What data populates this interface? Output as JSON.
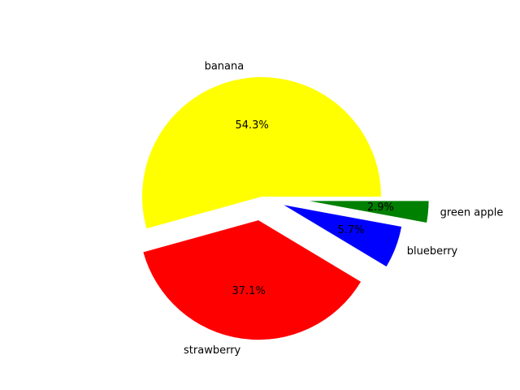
{
  "chart_data": {
    "type": "pie",
    "title": "",
    "slices": [
      {
        "label": "banana",
        "value": 54.3,
        "pct_label": "54.3%",
        "color": "#ffff00",
        "explode": 0.0
      },
      {
        "label": "strawberry",
        "value": 37.1,
        "pct_label": "37.1%",
        "color": "#ff0000",
        "explode": 0.2
      },
      {
        "label": "blueberry",
        "value": 5.7,
        "pct_label": "5.7%",
        "color": "#0000ff",
        "explode": 0.2
      },
      {
        "label": "green apple",
        "value": 2.9,
        "pct_label": "2.9%",
        "color": "#008000",
        "explode": 0.4
      }
    ],
    "start_angle_deg": 0,
    "counterclockwise": true,
    "legend": "none",
    "grid": false
  }
}
